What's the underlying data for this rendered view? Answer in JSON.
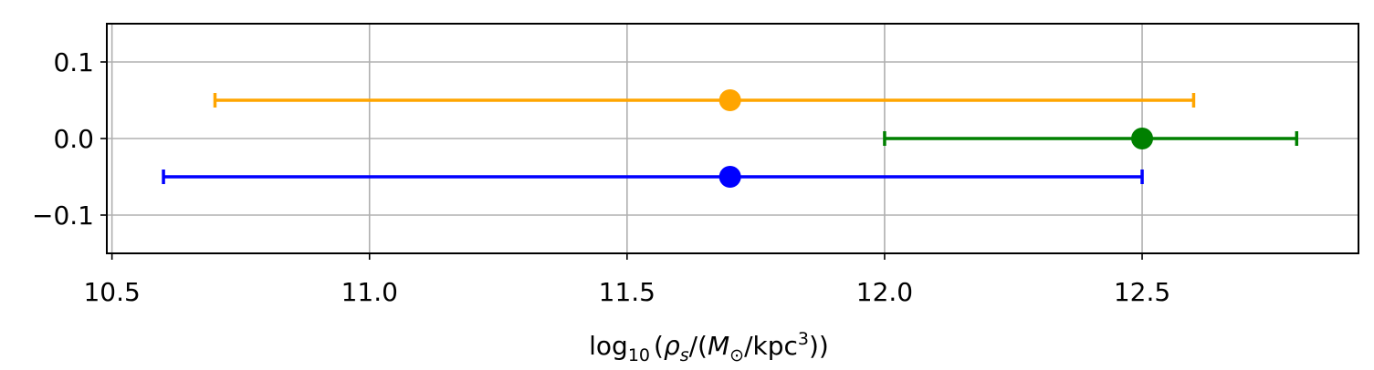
{
  "chart_data": {
    "type": "scatter",
    "title": "",
    "xlabel": {
      "prefix": "log",
      "sub": "10",
      "open": "(",
      "rho": "ρ",
      "rho_sub": "s",
      "mid": "/(",
      "M": "M",
      "sun": "⊙",
      "unit": "/kpc",
      "unit_sup": "3",
      "close": "))"
    },
    "ylabel": "",
    "xlim": [
      10.49,
      12.92
    ],
    "ylim": [
      -0.15,
      0.15
    ],
    "grid": true,
    "xticks": [
      {
        "value": 10.5,
        "label": "10.5"
      },
      {
        "value": 11.0,
        "label": "11.0"
      },
      {
        "value": 11.5,
        "label": "11.5"
      },
      {
        "value": 12.0,
        "label": "12.0"
      },
      {
        "value": 12.5,
        "label": "12.5"
      }
    ],
    "yticks": [
      {
        "value": 0.1,
        "label": "0.1"
      },
      {
        "value": 0.0,
        "label": "0.0"
      },
      {
        "value": -0.1,
        "label": "−0.1"
      }
    ],
    "series": [
      {
        "color": "#ffa500",
        "x": 11.7,
        "y": 0.05,
        "xerr_low": 10.7,
        "xerr_high": 12.6
      },
      {
        "color": "#008000",
        "x": 12.5,
        "y": 0.0,
        "xerr_low": 12.0,
        "xerr_high": 12.8
      },
      {
        "color": "#0000ff",
        "x": 11.7,
        "y": -0.05,
        "xerr_low": 10.6,
        "xerr_high": 12.5
      }
    ]
  }
}
